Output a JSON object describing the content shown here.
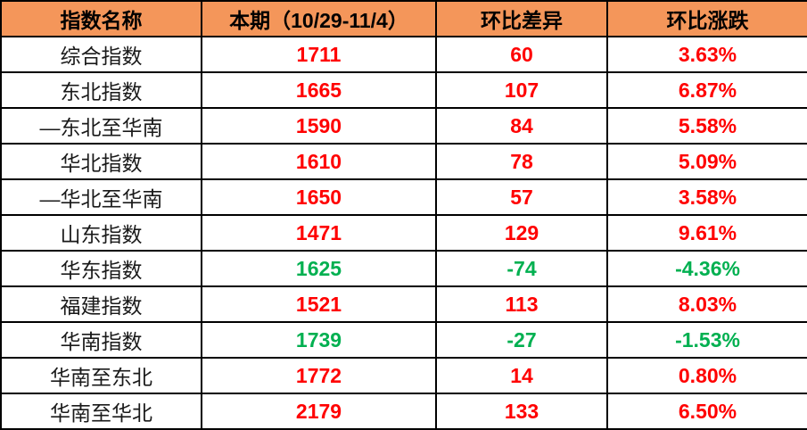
{
  "chart_data": {
    "type": "table",
    "columns": [
      "指数名称",
      "本期（10/29-11/4）",
      "环比差异",
      "环比涨跌"
    ],
    "rows": [
      {
        "name": "综合指数",
        "current": "1711",
        "diff": "60",
        "change": "3.63%",
        "trend": "up"
      },
      {
        "name": "东北指数",
        "current": "1665",
        "diff": "107",
        "change": "6.87%",
        "trend": "up"
      },
      {
        "name": "—东北至华南",
        "current": "1590",
        "diff": "84",
        "change": "5.58%",
        "trend": "up"
      },
      {
        "name": "华北指数",
        "current": "1610",
        "diff": "78",
        "change": "5.09%",
        "trend": "up"
      },
      {
        "name": "—华北至华南",
        "current": "1650",
        "diff": "57",
        "change": "3.58%",
        "trend": "up"
      },
      {
        "name": "山东指数",
        "current": "1471",
        "diff": "129",
        "change": "9.61%",
        "trend": "up"
      },
      {
        "name": "华东指数",
        "current": "1625",
        "diff": "-74",
        "change": "-4.36%",
        "trend": "down"
      },
      {
        "name": "福建指数",
        "current": "1521",
        "diff": "113",
        "change": "8.03%",
        "trend": "up"
      },
      {
        "name": "华南指数",
        "current": "1739",
        "diff": "-27",
        "change": "-1.53%",
        "trend": "down"
      },
      {
        "name": "华南至东北",
        "current": "1772",
        "diff": "14",
        "change": "0.80%",
        "trend": "up"
      },
      {
        "name": "华南至华北",
        "current": "2179",
        "diff": "133",
        "change": "6.50%",
        "trend": "up"
      }
    ]
  },
  "colors": {
    "header_bg": "#F4965A",
    "up_red": "#FF0000",
    "down_green": "#00B050",
    "border": "#000000"
  }
}
